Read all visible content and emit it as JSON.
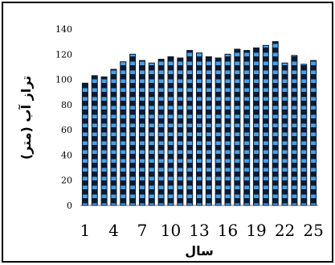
{
  "chart_data": {
    "type": "bar",
    "x": [
      1,
      2,
      3,
      4,
      5,
      6,
      7,
      8,
      9,
      10,
      11,
      12,
      13,
      14,
      15,
      16,
      17,
      18,
      19,
      20,
      21,
      22,
      23,
      24,
      25
    ],
    "values": [
      97,
      103,
      102,
      108,
      114,
      120,
      115,
      113,
      116,
      118,
      117,
      123,
      121,
      118,
      117,
      120,
      124,
      123,
      125,
      127,
      130,
      113,
      119,
      112,
      115
    ],
    "xlabel": "سال",
    "ylabel": "تراز آب (متر)",
    "ylim": [
      0,
      140
    ],
    "yticks": [
      0,
      20,
      40,
      60,
      80,
      100,
      120,
      140
    ],
    "xticks": [
      1,
      4,
      7,
      10,
      13,
      16,
      19,
      22,
      25
    ],
    "grid": false,
    "bar_style": {
      "fill": "#4aa0e6",
      "stripe": "#0b1a30"
    }
  }
}
